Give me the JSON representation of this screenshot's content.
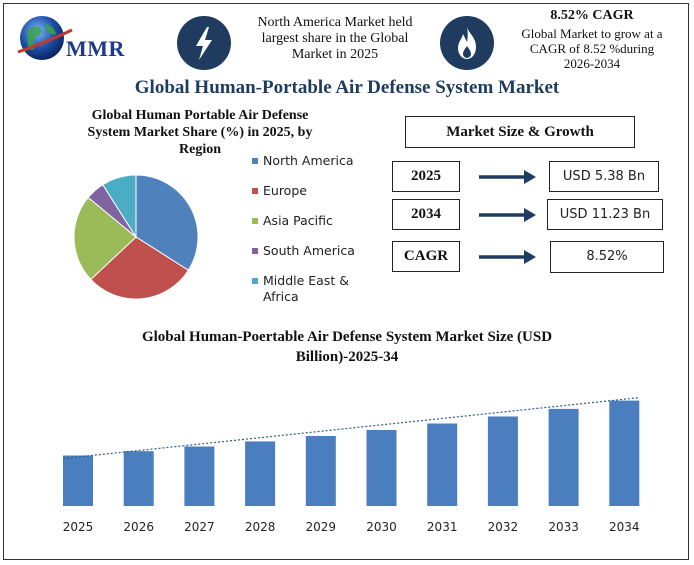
{
  "header": {
    "logo_text": "MMR",
    "highlight_1": {
      "icon": "lightning-icon",
      "lines": [
        "North America Market held",
        "largest share in the Global",
        "Market in 2025"
      ]
    },
    "highlight_2": {
      "icon": "flame-icon",
      "title": "8.52% CAGR",
      "lines": [
        "Global Market to grow at a",
        "CAGR of 8.52 %during",
        "2026-2034"
      ]
    }
  },
  "main_title": "Global Human-Portable Air Defense System Market",
  "colors": {
    "title": "#1f3c60",
    "bar": "#4a7ebf",
    "arrow": "#1f3c60",
    "icon_bg": "#1f3c60"
  },
  "market_size": {
    "heading": "Market Size & Growth",
    "rows": [
      {
        "label": "2025",
        "value": "USD 5.38 Bn"
      },
      {
        "label": "2034",
        "value": "USD 11.23 Bn"
      },
      {
        "label": "CAGR",
        "value": "8.52%"
      }
    ]
  },
  "chart_data": [
    {
      "type": "pie",
      "title_lines": [
        "Global Human Portable Air Defense",
        "System Market Share (%) in 2025, by",
        "Region"
      ],
      "categories": [
        "North America",
        "Europe",
        "Asia Pacific",
        "South America",
        "Middle East & Africa"
      ],
      "legend_lines": [
        [
          "North America"
        ],
        [
          "Europe"
        ],
        [
          "Asia Pacific"
        ],
        [
          "South America"
        ],
        [
          "Middle East &",
          "Africa"
        ]
      ],
      "values": [
        34,
        29,
        23,
        5,
        9
      ],
      "colors": [
        "#4f81bd",
        "#c0504d",
        "#9bbb59",
        "#8064a2",
        "#4bacc6"
      ],
      "legend": "right"
    },
    {
      "type": "bar",
      "title_lines": [
        "Global Human-Poertable Air Defense System Market Size (USD",
        "Billion)-2025-34"
      ],
      "categories": [
        "2025",
        "2026",
        "2027",
        "2028",
        "2029",
        "2030",
        "2031",
        "2032",
        "2033",
        "2034"
      ],
      "values": [
        5.38,
        5.84,
        6.34,
        6.88,
        7.46,
        8.1,
        8.79,
        9.54,
        10.35,
        11.23
      ],
      "ylim": [
        0,
        13
      ],
      "trendline": true,
      "grid": false
    }
  ]
}
